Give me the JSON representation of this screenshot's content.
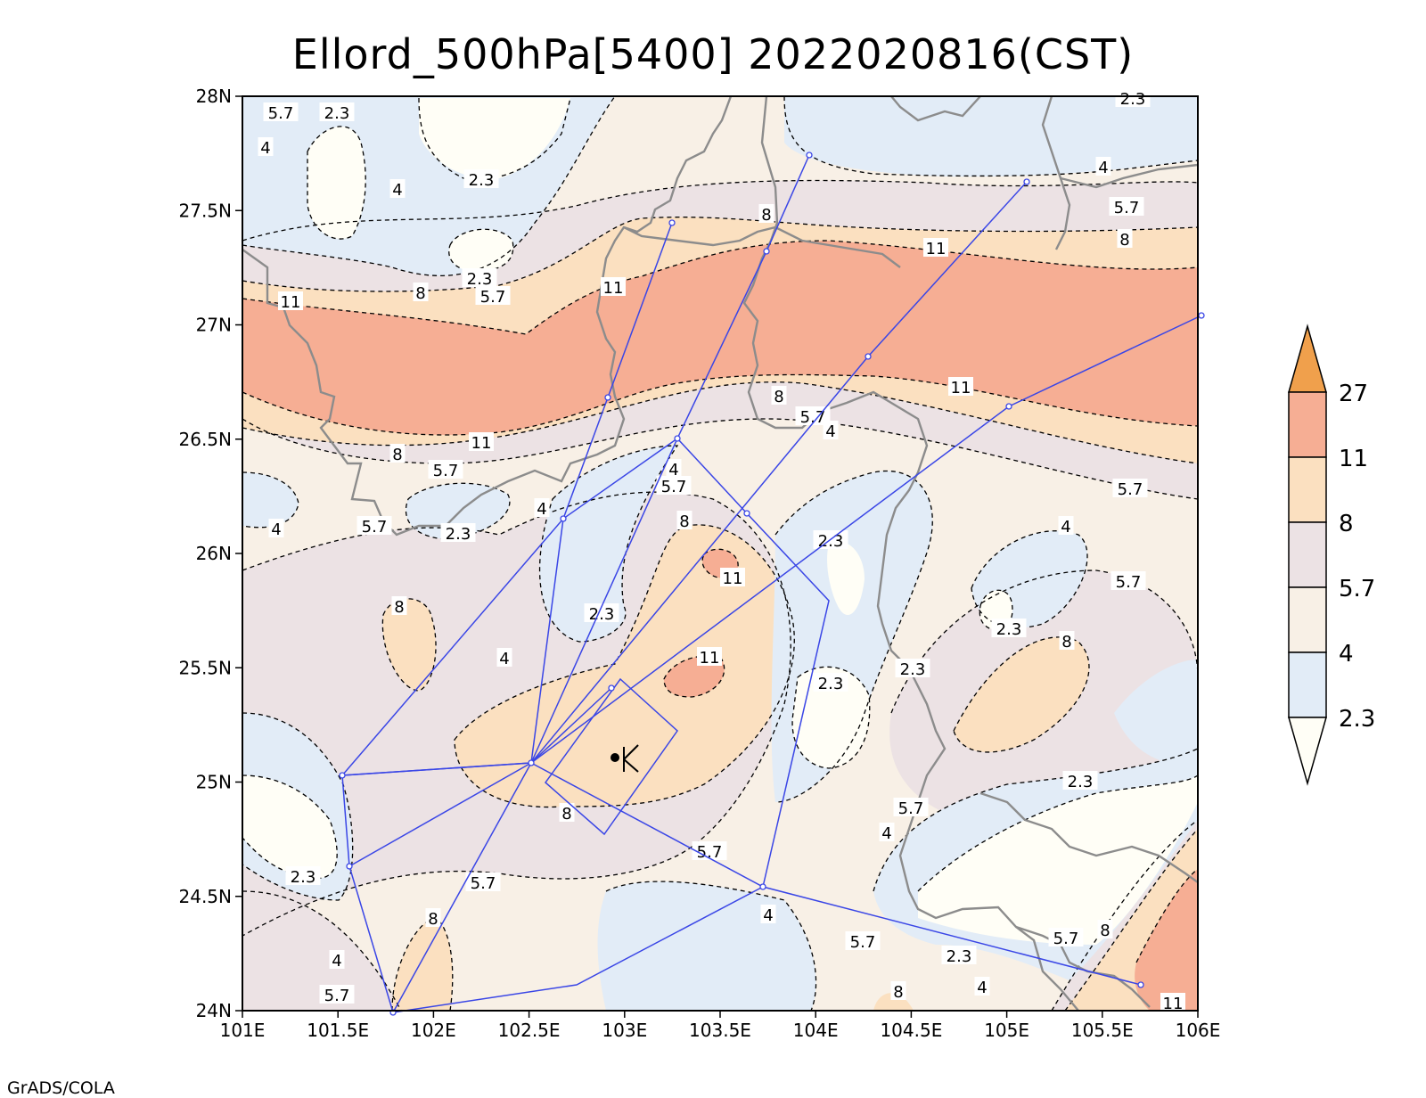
{
  "title": "Ellord_500hPa[5400] 2022020816(CST)",
  "credit": "GrADS/COLA",
  "map": {
    "lon_range": [
      101,
      106
    ],
    "lat_range": [
      24,
      28
    ],
    "lon_ticks": [
      "101E",
      "101.5E",
      "102E",
      "102.5E",
      "103E",
      "103.5E",
      "104E",
      "104.5E",
      "105E",
      "105.5E",
      "106E"
    ],
    "lat_ticks": [
      "24N",
      "24.5N",
      "25N",
      "25.5N",
      "26N",
      "26.5N",
      "27N",
      "27.5N",
      "28N"
    ],
    "contour_labels": [
      "2.3",
      "4",
      "5.7",
      "8",
      "11"
    ]
  },
  "legend": {
    "labels": [
      "27",
      "11",
      "8",
      "5.7",
      "4",
      "2.3"
    ],
    "colors": {
      "above_27": "#f0a04c",
      "11_27": "#f6ae94",
      "8_11": "#fbe0c0",
      "5.7_8": "#ece2e4",
      "4_5.7": "#f8f0e6",
      "2.3_4": "#e2ecf7",
      "below_2.3": "#fffef6"
    }
  },
  "colors": {
    "track": "#3a46e6",
    "border": "#8c8c8c",
    "contour": "#000000"
  }
}
